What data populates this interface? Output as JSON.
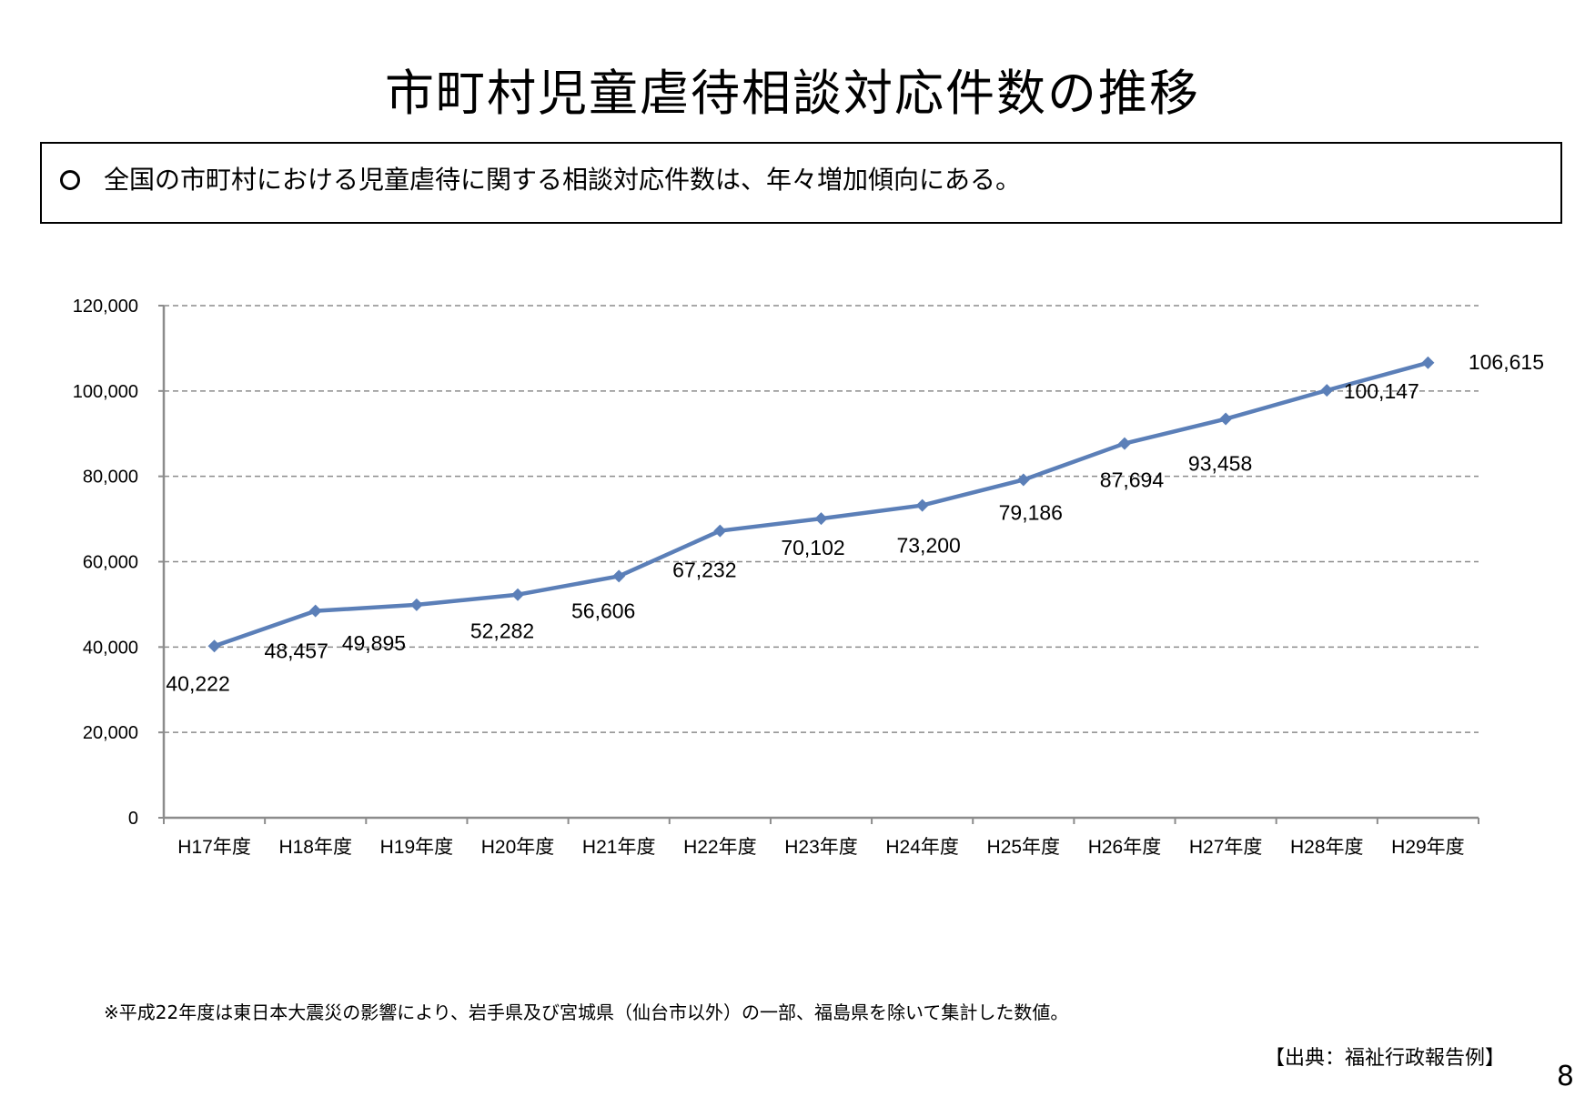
{
  "title": "市町村児童虐待相談対応件数の推移",
  "summary": {
    "bullet": "○",
    "text": "全国の市町村における児童虐待に関する相談対応件数は、年々増加傾向にある。"
  },
  "chart_data": {
    "type": "line",
    "categories": [
      "H17年度",
      "H18年度",
      "H19年度",
      "H20年度",
      "H21年度",
      "H22年度",
      "H23年度",
      "H24年度",
      "H25年度",
      "H26年度",
      "H27年度",
      "H28年度",
      "H29年度"
    ],
    "values": [
      40222,
      48457,
      49895,
      52282,
      56606,
      67232,
      70102,
      73200,
      79186,
      87694,
      93458,
      100147,
      106615
    ],
    "data_labels": [
      "40,222",
      "48,457",
      "49,895",
      "52,282",
      "56,606",
      "67,232",
      "70,102",
      "73,200",
      "79,186",
      "87,694",
      "93,458",
      "100,147",
      "106,615"
    ],
    "y_ticks": [
      0,
      20000,
      40000,
      60000,
      80000,
      100000,
      120000
    ],
    "y_tick_labels": [
      "0",
      "20,000",
      "40,000",
      "60,000",
      "80,000",
      "100,000",
      "120,000"
    ],
    "ylim": [
      0,
      120000
    ],
    "grid": true,
    "grid_style": "dashed",
    "marker": "diamond",
    "line_color": "#5b7fb8",
    "gridline_color": "#8c8c8c",
    "axis_color": "#8c8c8c"
  },
  "footnote": "※平成22年度は東日本大震災の影響により、岩手県及び宮城県（仙台市以外）の一部、福島県を除いて集計した数値。",
  "source": "【出典：福祉行政報告例】",
  "page_number": "8"
}
